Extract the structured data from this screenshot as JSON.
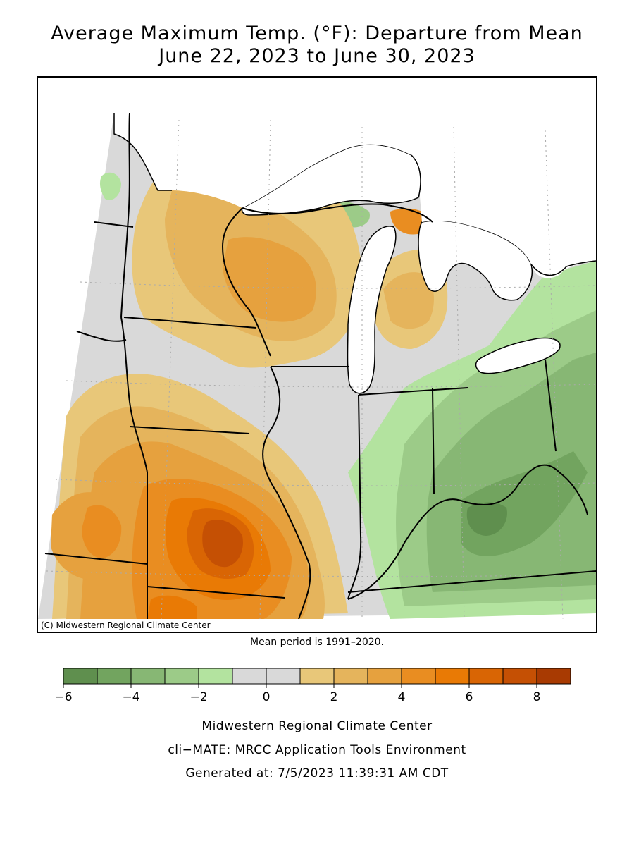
{
  "map": {
    "title_line1": "Average Maximum Temp. (°F): Departure from Mean",
    "title_line2": "June 22, 2023 to June 30, 2023",
    "credit": "(C) Midwestern Regional Climate Center",
    "mean_period": "Mean period is 1991–2020."
  },
  "legend": {
    "bins": [
      {
        "min": -6,
        "max": -5,
        "color": "#5f8f4e"
      },
      {
        "min": -5,
        "max": -4,
        "color": "#72a45f"
      },
      {
        "min": -4,
        "max": -3,
        "color": "#87b774"
      },
      {
        "min": -3,
        "max": -2,
        "color": "#9ccb88"
      },
      {
        "min": -2,
        "max": -1,
        "color": "#b3e39f"
      },
      {
        "min": -1,
        "max": 0,
        "color": "#d9d9d9"
      },
      {
        "min": 0,
        "max": 1,
        "color": "#d9d9d9"
      },
      {
        "min": 1,
        "max": 2,
        "color": "#e8c779"
      },
      {
        "min": 2,
        "max": 3,
        "color": "#e5b45c"
      },
      {
        "min": 3,
        "max": 4,
        "color": "#e6a13e"
      },
      {
        "min": 4,
        "max": 5,
        "color": "#e98d21"
      },
      {
        "min": 5,
        "max": 6,
        "color": "#e97a05"
      },
      {
        "min": 6,
        "max": 7,
        "color": "#d96504"
      },
      {
        "min": 7,
        "max": 8,
        "color": "#c55004"
      },
      {
        "min": 8,
        "max": 9,
        "color": "#a83a02"
      }
    ],
    "ticks": [
      "−6",
      "−4",
      "−2",
      "0",
      "2",
      "4",
      "6",
      "8"
    ]
  },
  "footer": {
    "line1": "Midwestern Regional Climate Center",
    "line2": "cli−MATE: MRCC Application Tools Environment",
    "line3": "Generated at: 7/5/2023 11:39:31 AM CDT"
  }
}
